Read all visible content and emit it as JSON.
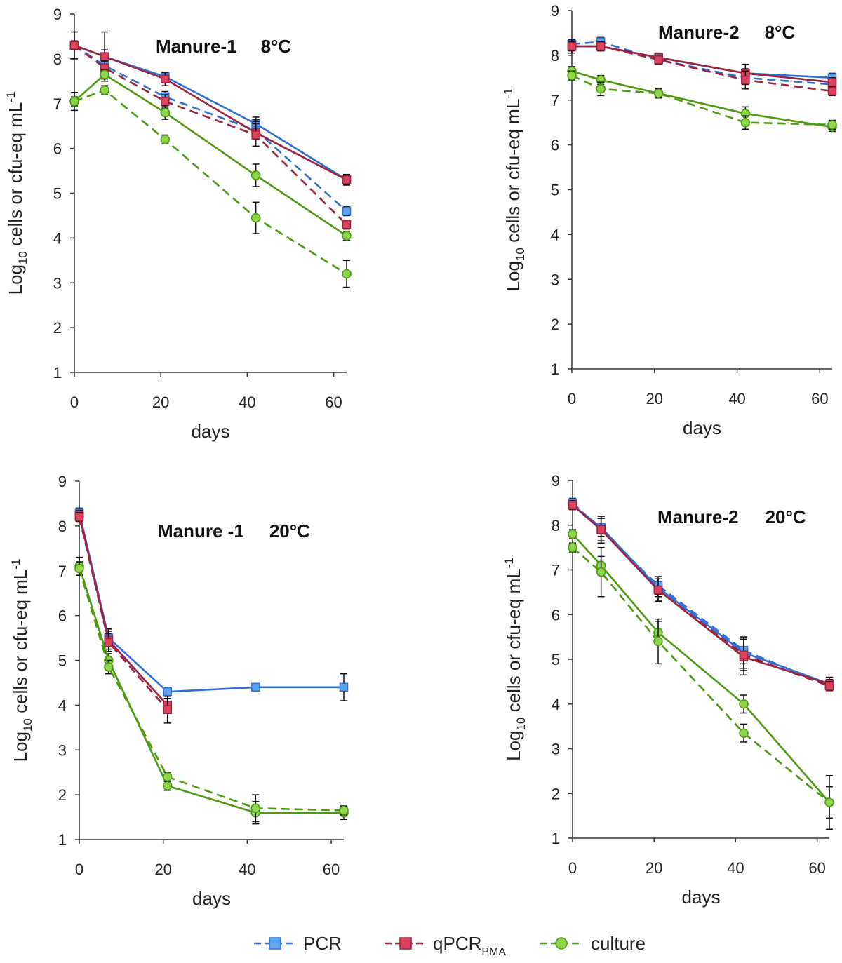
{
  "legend": [
    {
      "label": "PCR",
      "sub": "",
      "color": "#2e6fd6",
      "fill": "#5ea3ee",
      "marker": "square"
    },
    {
      "label": "qPCR",
      "sub": "PMA",
      "color": "#9b2440",
      "fill": "#d9435e",
      "marker": "square"
    },
    {
      "label": "culture",
      "sub": "",
      "color": "#4c9a12",
      "fill": "#8fd44a",
      "marker": "circle"
    }
  ],
  "colors": {
    "PCR": "#2e6fd6",
    "qPCR": "#9b2440",
    "culture": "#4c9a12",
    "axis": "#333333"
  },
  "chart_data": [
    {
      "type": "line",
      "title": "Manure-1 8°C",
      "xlabel": "days",
      "ylabel": "Log10 cells or cfu-eq mL-1",
      "xlim": [
        0,
        63
      ],
      "ylim": [
        1,
        9
      ],
      "xticks": [
        0,
        20,
        40,
        60
      ],
      "yticks": [
        1,
        2,
        3,
        4,
        5,
        6,
        7,
        8,
        9
      ],
      "series": [
        {
          "name": "PCR",
          "style": "solid",
          "x": [
            0,
            7,
            21,
            42,
            63
          ],
          "y": [
            8.3,
            8.05,
            7.6,
            6.55,
            5.3
          ],
          "err": [
            0.1,
            0.15,
            0.1,
            0.15,
            0.12
          ]
        },
        {
          "name": "PCR",
          "style": "dashed",
          "x": [
            0,
            7,
            21,
            42,
            63
          ],
          "y": [
            8.3,
            7.85,
            7.15,
            6.4,
            4.6
          ],
          "err": [
            0.1,
            0.15,
            0.12,
            0.2,
            0.1
          ]
        },
        {
          "name": "qPCR_PMA",
          "style": "solid",
          "x": [
            0,
            7,
            21,
            42,
            63
          ],
          "y": [
            8.3,
            8.05,
            7.55,
            6.35,
            5.3
          ],
          "err": [
            0.3,
            0.55,
            0.15,
            0.3,
            0.1
          ]
        },
        {
          "name": "qPCR_PMA",
          "style": "dashed",
          "x": [
            0,
            7,
            21,
            42,
            63
          ],
          "y": [
            8.3,
            7.8,
            7.05,
            6.3,
            4.3
          ],
          "err": [
            0.1,
            0.15,
            0.15,
            0.25,
            0.1
          ]
        },
        {
          "name": "culture",
          "style": "solid",
          "x": [
            0,
            7,
            21,
            42,
            63
          ],
          "y": [
            7.05,
            7.65,
            6.8,
            5.4,
            4.05
          ],
          "err": [
            0.2,
            0.1,
            0.15,
            0.25,
            0.1
          ]
        },
        {
          "name": "culture",
          "style": "dashed",
          "x": [
            0,
            7,
            21,
            42,
            63
          ],
          "y": [
            7.05,
            7.3,
            6.2,
            4.45,
            3.2
          ],
          "err": [
            0.1,
            0.1,
            0.1,
            0.35,
            0.3
          ]
        }
      ]
    },
    {
      "type": "line",
      "title": "Manure-2 8°C",
      "xlabel": "days",
      "ylabel": "Log10 cells or cfu-eq mL-1",
      "xlim": [
        0,
        63
      ],
      "ylim": [
        1,
        9
      ],
      "xticks": [
        0,
        20,
        40,
        60
      ],
      "yticks": [
        1,
        2,
        3,
        4,
        5,
        6,
        7,
        8,
        9
      ],
      "series": [
        {
          "name": "PCR",
          "style": "solid",
          "x": [
            0,
            7,
            21,
            42,
            63
          ],
          "y": [
            8.2,
            8.2,
            7.95,
            7.6,
            7.5
          ],
          "err": [
            0.1,
            0.1,
            0.1,
            0.1,
            0.1
          ]
        },
        {
          "name": "PCR",
          "style": "dashed",
          "x": [
            0,
            7,
            21,
            42,
            63
          ],
          "y": [
            8.25,
            8.3,
            7.9,
            7.5,
            7.35
          ],
          "err": [
            0.1,
            0.1,
            0.1,
            0.15,
            0.1
          ]
        },
        {
          "name": "qPCR_PMA",
          "style": "solid",
          "x": [
            0,
            7,
            21,
            42,
            63
          ],
          "y": [
            8.2,
            8.2,
            7.95,
            7.6,
            7.4
          ],
          "err": [
            0.15,
            0.1,
            0.1,
            0.2,
            0.1
          ]
        },
        {
          "name": "qPCR_PMA",
          "style": "dashed",
          "x": [
            0,
            7,
            21,
            42,
            63
          ],
          "y": [
            8.2,
            8.2,
            7.9,
            7.45,
            7.2
          ],
          "err": [
            0.1,
            0.1,
            0.1,
            0.2,
            0.1
          ]
        },
        {
          "name": "culture",
          "style": "solid",
          "x": [
            0,
            7,
            21,
            42,
            63
          ],
          "y": [
            7.65,
            7.45,
            7.15,
            6.7,
            6.4
          ],
          "err": [
            0.1,
            0.1,
            0.1,
            0.15,
            0.1
          ]
        },
        {
          "name": "culture",
          "style": "dashed",
          "x": [
            0,
            7,
            21,
            42,
            63
          ],
          "y": [
            7.55,
            7.25,
            7.15,
            6.5,
            6.45
          ],
          "err": [
            0.1,
            0.15,
            0.1,
            0.15,
            0.1
          ]
        }
      ]
    },
    {
      "type": "line",
      "title": "Manure -1 20°C",
      "xlabel": "days",
      "ylabel": "Log10 cells or cfu-eq mL-1",
      "xlim": [
        0,
        63
      ],
      "ylim": [
        1,
        9
      ],
      "xticks": [
        0,
        20,
        40,
        60
      ],
      "yticks": [
        1,
        2,
        3,
        4,
        5,
        6,
        7,
        8,
        9
      ],
      "series": [
        {
          "name": "PCR",
          "style": "solid",
          "x": [
            0,
            7,
            21,
            42,
            63
          ],
          "y": [
            8.3,
            5.5,
            4.3,
            4.4,
            4.4
          ],
          "err": [
            0.1,
            0.2,
            0.1,
            0.05,
            0.3
          ]
        },
        {
          "name": "PCR",
          "style": "dashed",
          "x": [
            0,
            7,
            21
          ],
          "y": [
            8.25,
            5.45,
            4.0
          ],
          "err": [
            0.1,
            0.2,
            0.15
          ]
        },
        {
          "name": "qPCR_PMA",
          "style": "solid",
          "x": [
            0,
            7,
            21
          ],
          "y": [
            8.25,
            5.45,
            4.0
          ],
          "err": [
            0.1,
            0.25,
            0.15
          ]
        },
        {
          "name": "qPCR_PMA",
          "style": "dashed",
          "x": [
            0,
            7,
            21
          ],
          "y": [
            8.2,
            5.4,
            3.9
          ],
          "err": [
            0.1,
            0.2,
            0.3
          ]
        },
        {
          "name": "culture",
          "style": "solid",
          "x": [
            0,
            7,
            21,
            42,
            63
          ],
          "y": [
            7.1,
            5.0,
            2.2,
            1.6,
            1.6
          ],
          "err": [
            0.2,
            0.15,
            0.1,
            0.25,
            0.15
          ]
        },
        {
          "name": "culture",
          "style": "dashed",
          "x": [
            0,
            7,
            21,
            42,
            63
          ],
          "y": [
            7.05,
            4.85,
            2.4,
            1.7,
            1.65
          ],
          "err": [
            0.15,
            0.15,
            0.1,
            0.3,
            0.1
          ]
        }
      ]
    },
    {
      "type": "line",
      "title": "Manure-2 20°C",
      "xlabel": "days",
      "ylabel": "Log10 cells or cfu-eq mL-1",
      "xlim": [
        0,
        63
      ],
      "ylim": [
        1,
        9
      ],
      "xticks": [
        0,
        20,
        40,
        60
      ],
      "yticks": [
        1,
        2,
        3,
        4,
        5,
        6,
        7,
        8,
        9
      ],
      "series": [
        {
          "name": "PCR",
          "style": "solid",
          "x": [
            0,
            7,
            21,
            42,
            63
          ],
          "y": [
            8.45,
            7.95,
            6.6,
            5.15,
            4.45
          ],
          "err": [
            0.1,
            0.2,
            0.2,
            0.35,
            0.15
          ]
        },
        {
          "name": "PCR",
          "style": "dashed",
          "x": [
            0,
            7,
            21,
            42,
            63
          ],
          "y": [
            8.5,
            7.9,
            6.65,
            5.2,
            4.4
          ],
          "err": [
            0.1,
            0.25,
            0.2,
            0.3,
            0.1
          ]
        },
        {
          "name": "qPCR_PMA",
          "style": "solid",
          "x": [
            0,
            7,
            21,
            42,
            63
          ],
          "y": [
            8.45,
            7.9,
            6.55,
            5.05,
            4.45
          ],
          "err": [
            0.1,
            0.3,
            0.25,
            0.4,
            0.1
          ]
        },
        {
          "name": "qPCR_PMA",
          "style": "dashed",
          "x": [
            0,
            7,
            21,
            42,
            63
          ],
          "y": [
            8.45,
            7.9,
            6.55,
            5.1,
            4.4
          ],
          "err": [
            0.1,
            0.3,
            0.25,
            0.35,
            0.1
          ]
        },
        {
          "name": "culture",
          "style": "solid",
          "x": [
            0,
            7,
            21,
            42,
            63
          ],
          "y": [
            7.8,
            7.1,
            5.6,
            4.0,
            1.8
          ],
          "err": [
            0.1,
            0.2,
            0.25,
            0.2,
            0.35
          ]
        },
        {
          "name": "culture",
          "style": "dashed",
          "x": [
            0,
            7,
            21,
            42,
            63
          ],
          "y": [
            7.5,
            6.95,
            5.4,
            3.35,
            1.8
          ],
          "err": [
            0.1,
            0.55,
            0.5,
            0.2,
            0.6
          ]
        }
      ]
    }
  ]
}
